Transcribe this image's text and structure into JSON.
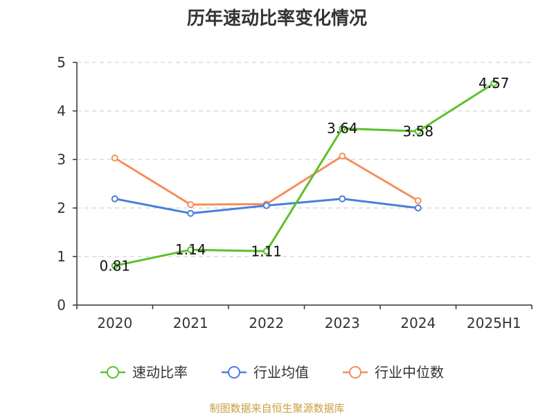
{
  "chart_data": {
    "type": "line",
    "title": "历年速动比率变化情况",
    "categories": [
      "2020",
      "2021",
      "2022",
      "2023",
      "2024",
      "2025H1"
    ],
    "ylim": [
      0,
      5
    ],
    "yticks": [
      0,
      1,
      2,
      3,
      4,
      5
    ],
    "grid": true,
    "legend_position": "bottom",
    "series": [
      {
        "name": "速动比率",
        "color": "#5cc12a",
        "values": [
          0.81,
          1.14,
          1.11,
          3.64,
          3.58,
          4.57
        ],
        "labels": [
          "0.81",
          "1.14",
          "1.11",
          "3.64",
          "3.58",
          "4.57"
        ]
      },
      {
        "name": "行业均值",
        "color": "#4a7fdc",
        "values": [
          2.19,
          1.89,
          2.05,
          2.19,
          2.0,
          null
        ]
      },
      {
        "name": "行业中位数",
        "color": "#f58e5b",
        "values": [
          3.03,
          2.07,
          2.08,
          3.07,
          2.15,
          null
        ]
      }
    ]
  },
  "footer": {
    "source": "制图数据来自恒生聚源数据库"
  }
}
